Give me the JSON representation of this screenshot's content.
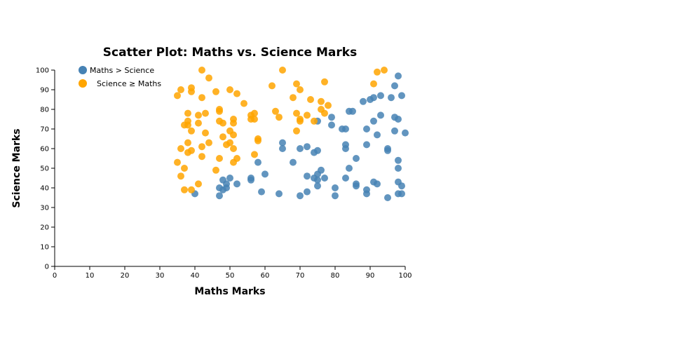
{
  "chart_data": {
    "type": "scatter",
    "title": "Scatter Plot: Maths vs. Science Marks",
    "xlabel": "Maths Marks",
    "ylabel": "Science Marks",
    "xlim": [
      0,
      100
    ],
    "ylim": [
      0,
      100
    ],
    "xticks": [
      "0",
      "10",
      "20",
      "30",
      "40",
      "50",
      "60",
      "70",
      "80",
      "90",
      "100"
    ],
    "yticks": [
      "0",
      "10",
      "20",
      "30",
      "40",
      "50",
      "60",
      "70",
      "80",
      "90",
      "100"
    ],
    "grid": false,
    "legend_position": "top-left",
    "series": [
      {
        "name": "Maths > Science",
        "color": "#4682b4",
        "points": [
          [
            40,
            37
          ],
          [
            47,
            36
          ],
          [
            47,
            40
          ],
          [
            48,
            44
          ],
          [
            48,
            39
          ],
          [
            49,
            42
          ],
          [
            49,
            40
          ],
          [
            50,
            45
          ],
          [
            52,
            42
          ],
          [
            56,
            45
          ],
          [
            56,
            44
          ],
          [
            58,
            53
          ],
          [
            59,
            38
          ],
          [
            60,
            47
          ],
          [
            64,
            37
          ],
          [
            65,
            63
          ],
          [
            65,
            60
          ],
          [
            68,
            53
          ],
          [
            70,
            60
          ],
          [
            70,
            36
          ],
          [
            72,
            61
          ],
          [
            72,
            46
          ],
          [
            72,
            38
          ],
          [
            74,
            58
          ],
          [
            74,
            45
          ],
          [
            75,
            59
          ],
          [
            75,
            47
          ],
          [
            75,
            44
          ],
          [
            75,
            41
          ],
          [
            75,
            74
          ],
          [
            76,
            49
          ],
          [
            77,
            45
          ],
          [
            79,
            76
          ],
          [
            79,
            72
          ],
          [
            80,
            40
          ],
          [
            80,
            36
          ],
          [
            82,
            70
          ],
          [
            83,
            70
          ],
          [
            83,
            62
          ],
          [
            83,
            60
          ],
          [
            83,
            45
          ],
          [
            84,
            79
          ],
          [
            84,
            50
          ],
          [
            85,
            79
          ],
          [
            86,
            55
          ],
          [
            86,
            42
          ],
          [
            86,
            41
          ],
          [
            88,
            84
          ],
          [
            89,
            70
          ],
          [
            89,
            62
          ],
          [
            89,
            39
          ],
          [
            89,
            37
          ],
          [
            90,
            85
          ],
          [
            91,
            86
          ],
          [
            91,
            74
          ],
          [
            91,
            43
          ],
          [
            92,
            67
          ],
          [
            92,
            42
          ],
          [
            93,
            87
          ],
          [
            93,
            77
          ],
          [
            95,
            60
          ],
          [
            95,
            59
          ],
          [
            95,
            35
          ],
          [
            96,
            86
          ],
          [
            97,
            92
          ],
          [
            97,
            76
          ],
          [
            97,
            69
          ],
          [
            98,
            97
          ],
          [
            98,
            75
          ],
          [
            98,
            54
          ],
          [
            98,
            50
          ],
          [
            98,
            43
          ],
          [
            98,
            37
          ],
          [
            99,
            87
          ],
          [
            99,
            41
          ],
          [
            99,
            37
          ],
          [
            100,
            68
          ]
        ]
      },
      {
        "name": "Science ≥ Maths",
        "color": "#ffa500",
        "points": [
          [
            35,
            87
          ],
          [
            35,
            53
          ],
          [
            36,
            90
          ],
          [
            36,
            60
          ],
          [
            36,
            46
          ],
          [
            37,
            72
          ],
          [
            37,
            50
          ],
          [
            37,
            39
          ],
          [
            38,
            78
          ],
          [
            38,
            74
          ],
          [
            38,
            72
          ],
          [
            38,
            63
          ],
          [
            38,
            58
          ],
          [
            39,
            91
          ],
          [
            39,
            89
          ],
          [
            39,
            69
          ],
          [
            39,
            59
          ],
          [
            39,
            39
          ],
          [
            41,
            77
          ],
          [
            41,
            73
          ],
          [
            41,
            42
          ],
          [
            42,
            100
          ],
          [
            42,
            86
          ],
          [
            42,
            61
          ],
          [
            42,
            56
          ],
          [
            43,
            78
          ],
          [
            43,
            68
          ],
          [
            44,
            96
          ],
          [
            44,
            63
          ],
          [
            46,
            89
          ],
          [
            46,
            49
          ],
          [
            47,
            80
          ],
          [
            47,
            79
          ],
          [
            47,
            74
          ],
          [
            47,
            55
          ],
          [
            48,
            73
          ],
          [
            48,
            66
          ],
          [
            49,
            62
          ],
          [
            50,
            90
          ],
          [
            50,
            69
          ],
          [
            50,
            63
          ],
          [
            51,
            75
          ],
          [
            51,
            73
          ],
          [
            51,
            67
          ],
          [
            51,
            60
          ],
          [
            51,
            53
          ],
          [
            52,
            88
          ],
          [
            52,
            55
          ],
          [
            54,
            83
          ],
          [
            56,
            77
          ],
          [
            56,
            75
          ],
          [
            57,
            78
          ],
          [
            57,
            75
          ],
          [
            57,
            57
          ],
          [
            58,
            65
          ],
          [
            58,
            64
          ],
          [
            62,
            92
          ],
          [
            63,
            79
          ],
          [
            64,
            76
          ],
          [
            65,
            100
          ],
          [
            68,
            86
          ],
          [
            69,
            93
          ],
          [
            69,
            78
          ],
          [
            69,
            69
          ],
          [
            70,
            90
          ],
          [
            70,
            75
          ],
          [
            70,
            74
          ],
          [
            72,
            77
          ],
          [
            73,
            85
          ],
          [
            74,
            74
          ],
          [
            76,
            84
          ],
          [
            76,
            80
          ],
          [
            77,
            94
          ],
          [
            77,
            78
          ],
          [
            78,
            82
          ],
          [
            91,
            93
          ],
          [
            92,
            99
          ],
          [
            94,
            100
          ]
        ]
      }
    ]
  }
}
